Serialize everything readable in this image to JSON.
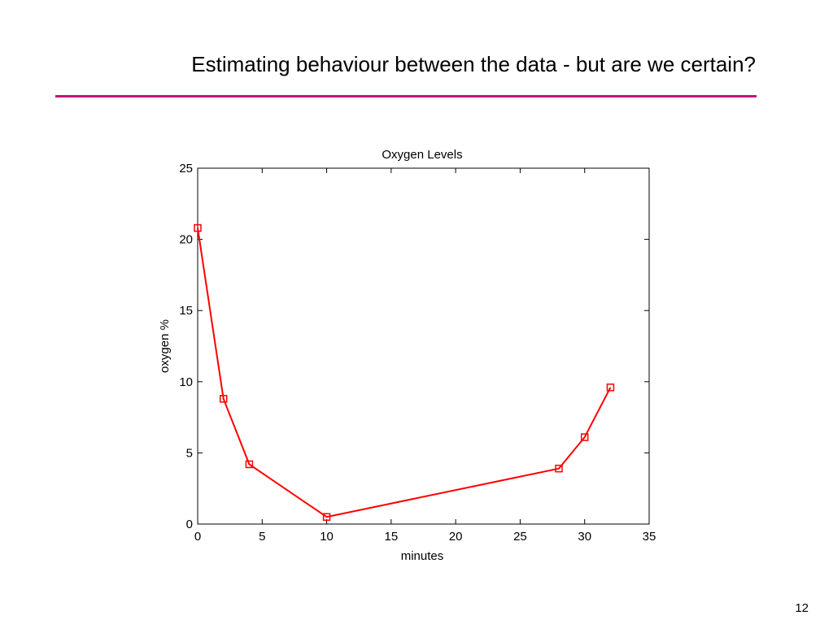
{
  "slide": {
    "title": "Estimating behaviour between the data - but are we certain?",
    "page_number": "12",
    "accent_color": "#c0147e"
  },
  "chart_data": {
    "type": "line",
    "title": "Oxygen Levels",
    "xlabel": "minutes",
    "ylabel": "oxygen %",
    "xlim": [
      0,
      35
    ],
    "ylim": [
      0,
      25
    ],
    "xticks": [
      0,
      5,
      10,
      15,
      20,
      25,
      30,
      35
    ],
    "yticks": [
      0,
      5,
      10,
      15,
      20,
      25
    ],
    "grid": false,
    "series": [
      {
        "color": "#ff0000",
        "marker": "square",
        "x": [
          0,
          2,
          4,
          10,
          28,
          30,
          32
        ],
        "y": [
          20.8,
          8.8,
          4.2,
          0.5,
          3.9,
          6.1,
          9.6
        ]
      }
    ]
  }
}
